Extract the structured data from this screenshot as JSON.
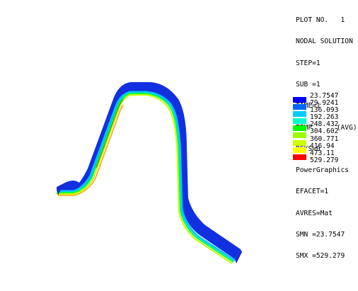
{
  "plot_info": {
    "plot_no": "PLOT NO.   1",
    "solution_type": "NODAL SOLUTION",
    "step": "STEP=1",
    "sub": "SUB =1",
    "time": "TIME=1",
    "result": "TEMP      (AVG)",
    "rsys": "RSYS=0",
    "graphics": "PowerGraphics",
    "efacet": "EFACET=1",
    "avres": "AVRES=Mat",
    "smn": "SMN =23.7547",
    "smx": "SMX =529.279"
  },
  "legend": {
    "labels": [
      "23.7547",
      "79.9241",
      "136.093",
      "192.263",
      "248.432",
      "304.602",
      "360.771",
      "416.94",
      "473.11",
      "529.279"
    ],
    "colors": [
      "#0000ff",
      "#0066ff",
      "#00ccff",
      "#00ffcc",
      "#00ff00",
      "#99ff00",
      "#ccff00",
      "#ffff00",
      "#ffaa00",
      "#ff0000"
    ]
  },
  "colors": {
    "background": "#ffffff",
    "band_top": "#1033e0",
    "band_side": "#1d2fd6",
    "edge_hot": "#8b0000"
  }
}
